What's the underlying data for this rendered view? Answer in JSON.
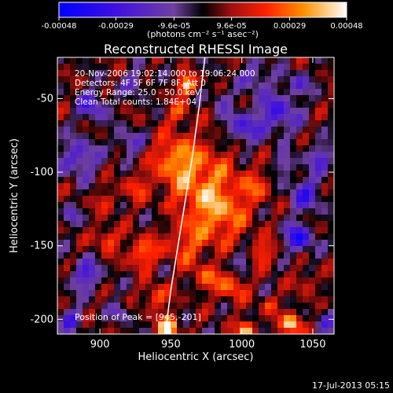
{
  "colorbar": {
    "ticks": [
      "-0.00048",
      "-0.00029",
      "-9.6e-05",
      "9.6e-05",
      "0.00029",
      "0.00048"
    ],
    "unit_label": "(photons cm⁻² s⁻¹ asec⁻²)",
    "min": -0.00048,
    "max": 0.00048
  },
  "chart_data": {
    "type": "heatmap",
    "title": "Reconstructed RHESSI Image",
    "xlabel": "Heliocentric X (arcsec)",
    "ylabel": "Heliocentric Y (arcsec)",
    "xlim": [
      870,
      1065
    ],
    "ylim": [
      -210,
      -22
    ],
    "x_ticks": [
      900,
      950,
      1000,
      1050
    ],
    "y_ticks": [
      -50,
      -100,
      -150,
      -200
    ],
    "annotations": [
      "20-Nov-2006 19:02:14.000 to 19:06:24.000",
      "Detectors: 4F 5F 6F 7F 8F, Att 0",
      "Energy Range: 25.0 - 50.0 keV",
      "Clean    Total counts: 1.84E+04"
    ],
    "peak_label": "Position of Peak = [945,-201]",
    "peak": [
      945,
      -201
    ],
    "limb_curve": [
      [
        946,
        -210
      ],
      [
        950,
        -180
      ],
      [
        955,
        -150
      ],
      [
        960,
        -120
      ],
      [
        965,
        -90
      ],
      [
        970,
        -55
      ],
      [
        974,
        -22
      ]
    ],
    "blobs": [
      [
        948,
        -205,
        7,
        1.0
      ],
      [
        961,
        -41,
        6,
        0.95
      ],
      [
        1035,
        -203,
        7,
        0.9
      ],
      [
        1003,
        -207,
        6,
        0.85
      ],
      [
        970,
        -105,
        26,
        0.55
      ],
      [
        985,
        -130,
        20,
        0.5
      ],
      [
        952,
        -90,
        14,
        0.45
      ],
      [
        930,
        -155,
        10,
        0.6
      ],
      [
        940,
        -185,
        8,
        0.55
      ],
      [
        993,
        -178,
        10,
        0.5
      ],
      [
        1015,
        -155,
        9,
        0.45
      ],
      [
        905,
        -145,
        8,
        0.5
      ],
      [
        960,
        -150,
        14,
        0.4
      ],
      [
        925,
        -110,
        9,
        0.35
      ],
      [
        1010,
        -110,
        11,
        0.35
      ],
      [
        975,
        -172,
        9,
        0.45
      ],
      [
        905,
        -120,
        7,
        0.35
      ],
      [
        955,
        -60,
        8,
        0.4
      ],
      [
        1045,
        -175,
        7,
        0.35
      ],
      [
        1020,
        -190,
        6,
        0.4
      ],
      [
        1040,
        -145,
        9,
        -0.85
      ],
      [
        1045,
        -115,
        12,
        -0.55
      ],
      [
        1025,
        -60,
        14,
        -0.6
      ],
      [
        1000,
        -70,
        12,
        -0.55
      ],
      [
        885,
        -90,
        12,
        -0.6
      ],
      [
        895,
        -55,
        10,
        -0.55
      ],
      [
        890,
        -170,
        10,
        -0.6
      ],
      [
        1010,
        -35,
        10,
        -0.45
      ],
      [
        920,
        -80,
        9,
        -0.45
      ],
      [
        1055,
        -90,
        9,
        -0.5
      ],
      [
        1030,
        -95,
        7,
        -0.4
      ],
      [
        925,
        -40,
        8,
        -0.4
      ],
      [
        1000,
        -160,
        7,
        -0.45
      ],
      [
        945,
        -130,
        5,
        -0.35
      ],
      [
        880,
        -200,
        8,
        -0.5
      ],
      [
        915,
        -195,
        6,
        -0.45
      ],
      [
        1060,
        -200,
        7,
        -0.4
      ],
      [
        985,
        -50,
        7,
        -0.35
      ],
      [
        1040,
        -40,
        8,
        -0.45
      ],
      [
        880,
        -130,
        6,
        -0.4
      ]
    ]
  },
  "footer": {
    "timestamp": "17-Jul-2013 05:15"
  }
}
